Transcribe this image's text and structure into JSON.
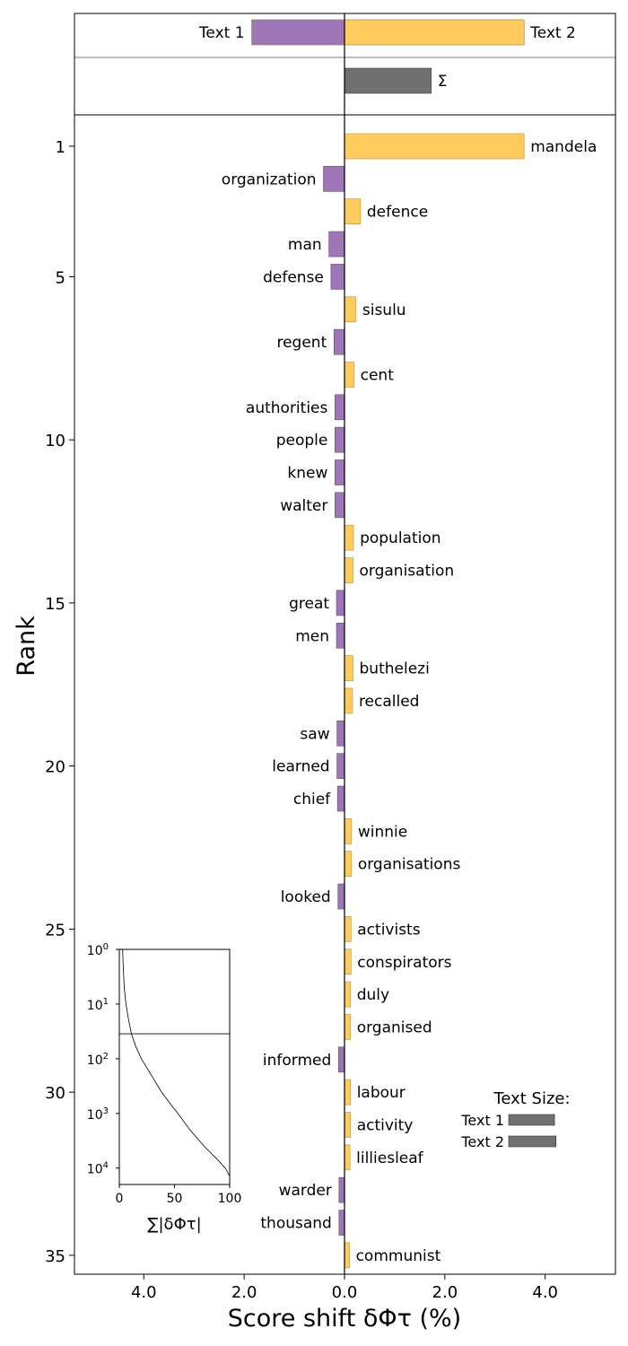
{
  "chart_data": {
    "type": "bar",
    "orientation": "horizontal",
    "xlabel": "Score shift δΦτ (%)",
    "ylabel": "Rank",
    "xlim": [
      -5.4,
      5.4
    ],
    "x_ticks": [
      -4,
      -2,
      0,
      2,
      4
    ],
    "x_tick_labels": [
      "4.0",
      "2.0",
      "0.0",
      "2.0",
      "4.0"
    ],
    "y_ticks": [
      1,
      5,
      10,
      15,
      20,
      25,
      30,
      35
    ],
    "colors": {
      "text1": "#9e76b8",
      "text2": "#ffcb5d",
      "total": "#707070"
    },
    "summary": {
      "bars": [
        {
          "label": "Text 1",
          "value": -1.85,
          "color": "text1"
        },
        {
          "label": "Text 2",
          "value": 3.58,
          "color": "text2"
        }
      ],
      "total": {
        "label": "Σ",
        "value": 1.73
      }
    },
    "words": [
      {
        "rank": 1,
        "word": "mandela",
        "value": 3.58
      },
      {
        "rank": 2,
        "word": "organization",
        "value": -0.42
      },
      {
        "rank": 3,
        "word": "defence",
        "value": 0.32
      },
      {
        "rank": 4,
        "word": "man",
        "value": -0.31
      },
      {
        "rank": 5,
        "word": "defense",
        "value": -0.27
      },
      {
        "rank": 6,
        "word": "sisulu",
        "value": 0.23
      },
      {
        "rank": 7,
        "word": "regent",
        "value": -0.21
      },
      {
        "rank": 8,
        "word": "cent",
        "value": 0.19
      },
      {
        "rank": 9,
        "word": "authorities",
        "value": -0.19
      },
      {
        "rank": 10,
        "word": "people",
        "value": -0.19
      },
      {
        "rank": 11,
        "word": "knew",
        "value": -0.19
      },
      {
        "rank": 12,
        "word": "walter",
        "value": -0.19
      },
      {
        "rank": 13,
        "word": "population",
        "value": 0.18
      },
      {
        "rank": 14,
        "word": "organisation",
        "value": 0.17
      },
      {
        "rank": 15,
        "word": "great",
        "value": -0.16
      },
      {
        "rank": 16,
        "word": "men",
        "value": -0.16
      },
      {
        "rank": 17,
        "word": "buthelezi",
        "value": 0.17
      },
      {
        "rank": 18,
        "word": "recalled",
        "value": 0.16
      },
      {
        "rank": 19,
        "word": "saw",
        "value": -0.15
      },
      {
        "rank": 20,
        "word": "learned",
        "value": -0.15
      },
      {
        "rank": 21,
        "word": "chief",
        "value": -0.14
      },
      {
        "rank": 22,
        "word": "winnie",
        "value": 0.14
      },
      {
        "rank": 23,
        "word": "organisations",
        "value": 0.14
      },
      {
        "rank": 24,
        "word": "looked",
        "value": -0.13
      },
      {
        "rank": 25,
        "word": "activists",
        "value": 0.13
      },
      {
        "rank": 26,
        "word": "conspirators",
        "value": 0.13
      },
      {
        "rank": 27,
        "word": "duly",
        "value": 0.12
      },
      {
        "rank": 28,
        "word": "organised",
        "value": 0.12
      },
      {
        "rank": 29,
        "word": "informed",
        "value": -0.12
      },
      {
        "rank": 30,
        "word": "labour",
        "value": 0.12
      },
      {
        "rank": 31,
        "word": "activity",
        "value": 0.12
      },
      {
        "rank": 32,
        "word": "lilliesleaf",
        "value": 0.11
      },
      {
        "rank": 33,
        "word": "warder",
        "value": -0.11
      },
      {
        "rank": 34,
        "word": "thousand",
        "value": -0.11
      },
      {
        "rank": 35,
        "word": "communist",
        "value": 0.1
      }
    ],
    "text_size_legend": {
      "title": "Text Size:",
      "items": [
        {
          "label": "Text 1",
          "size": 0.93
        },
        {
          "label": "Text 2",
          "size": 0.96
        }
      ]
    },
    "inset": {
      "xlabel": "∑|δΦτ|",
      "x_ticks": [
        0,
        50,
        100
      ],
      "y_tick_exponents": [
        0,
        1,
        2,
        3,
        4
      ],
      "y_tick_base": "10",
      "hline_rank": 35,
      "curve": [
        {
          "rank": 1,
          "cum": 3.0
        },
        {
          "rank": 2,
          "cum": 3.5
        },
        {
          "rank": 5,
          "cum": 4.5
        },
        {
          "rank": 10,
          "cum": 6
        },
        {
          "rank": 20,
          "cum": 8.5
        },
        {
          "rank": 35,
          "cum": 11
        },
        {
          "rank": 60,
          "cum": 15
        },
        {
          "rank": 100,
          "cum": 20
        },
        {
          "rank": 200,
          "cum": 29
        },
        {
          "rank": 400,
          "cum": 38
        },
        {
          "rank": 700,
          "cum": 47
        },
        {
          "rank": 1000,
          "cum": 53
        },
        {
          "rank": 2000,
          "cum": 64
        },
        {
          "rank": 4000,
          "cum": 77
        },
        {
          "rank": 7000,
          "cum": 89
        },
        {
          "rank": 10000,
          "cum": 96
        },
        {
          "rank": 14000,
          "cum": 100
        }
      ]
    }
  }
}
